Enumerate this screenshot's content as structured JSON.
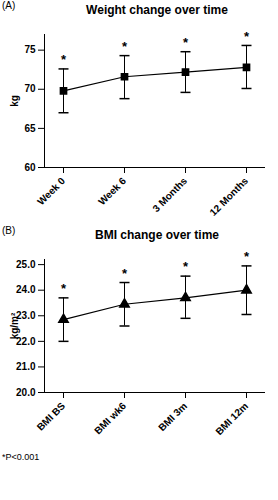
{
  "chart_data": [
    {
      "type": "line",
      "panel_label": "(A)",
      "title": "Weight change over time",
      "y_label": "kg",
      "categories": [
        "Week 0",
        "Week 6",
        "3 Months",
        "12 Months"
      ],
      "values": [
        69.8,
        71.6,
        72.2,
        72.8
      ],
      "error_low": [
        67.0,
        68.8,
        69.6,
        70.1
      ],
      "error_high": [
        72.6,
        74.3,
        74.8,
        75.6
      ],
      "annotations": [
        "*",
        "*",
        "*",
        "*"
      ],
      "ylim": [
        60,
        77
      ],
      "yticks": [
        60,
        65,
        70,
        75
      ],
      "marker": "square",
      "color": "#000000"
    },
    {
      "type": "line",
      "panel_label": "(B)",
      "title": "BMI change over time",
      "y_label": "kg/m²",
      "categories": [
        "BMI BS",
        "BMI wk6",
        "BMI 3m",
        "BMI 12m"
      ],
      "values": [
        22.85,
        23.45,
        23.7,
        24.0
      ],
      "error_low": [
        22.0,
        22.6,
        22.9,
        23.05
      ],
      "error_high": [
        23.7,
        24.3,
        24.55,
        24.95
      ],
      "annotations": [
        "*",
        "*",
        "*",
        "*"
      ],
      "ylim": [
        20,
        25.2
      ],
      "yticks": [
        20,
        21,
        22,
        23,
        24,
        25
      ],
      "marker": "triangle",
      "color": "#000000",
      "caption": "*P<0.001"
    }
  ]
}
